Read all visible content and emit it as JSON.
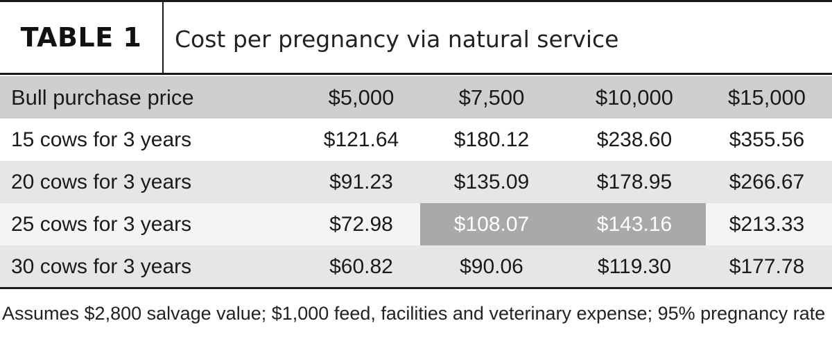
{
  "table": {
    "label": "TABLE 1",
    "title": "Cost per pregnancy via natural service",
    "header": [
      "Bull purchase price",
      "$5,000",
      "$7,500",
      "$10,000",
      "$15,000"
    ],
    "rows": [
      [
        "15 cows for 3 years",
        "$121.64",
        "$180.12",
        "$238.60",
        "$355.56"
      ],
      [
        "20 cows for 3 years",
        "$91.23",
        "$135.09",
        "$178.95",
        "$266.67"
      ],
      [
        "25 cows for 3 years",
        "$72.98",
        "$108.07",
        "$143.16",
        "$213.33"
      ],
      [
        "30 cows for 3 years",
        "$60.82",
        "$90.06",
        "$119.30",
        "$177.78"
      ]
    ],
    "footnote": "Assumes $2,800 salvage value; $1,000 feed, facilities and veterinary expense; 95% pregnancy rate",
    "colors": {
      "header_row": "#cfcfcf",
      "highlight_cell": "#a9a9a9",
      "alt_row": "#e6e6e6"
    }
  }
}
